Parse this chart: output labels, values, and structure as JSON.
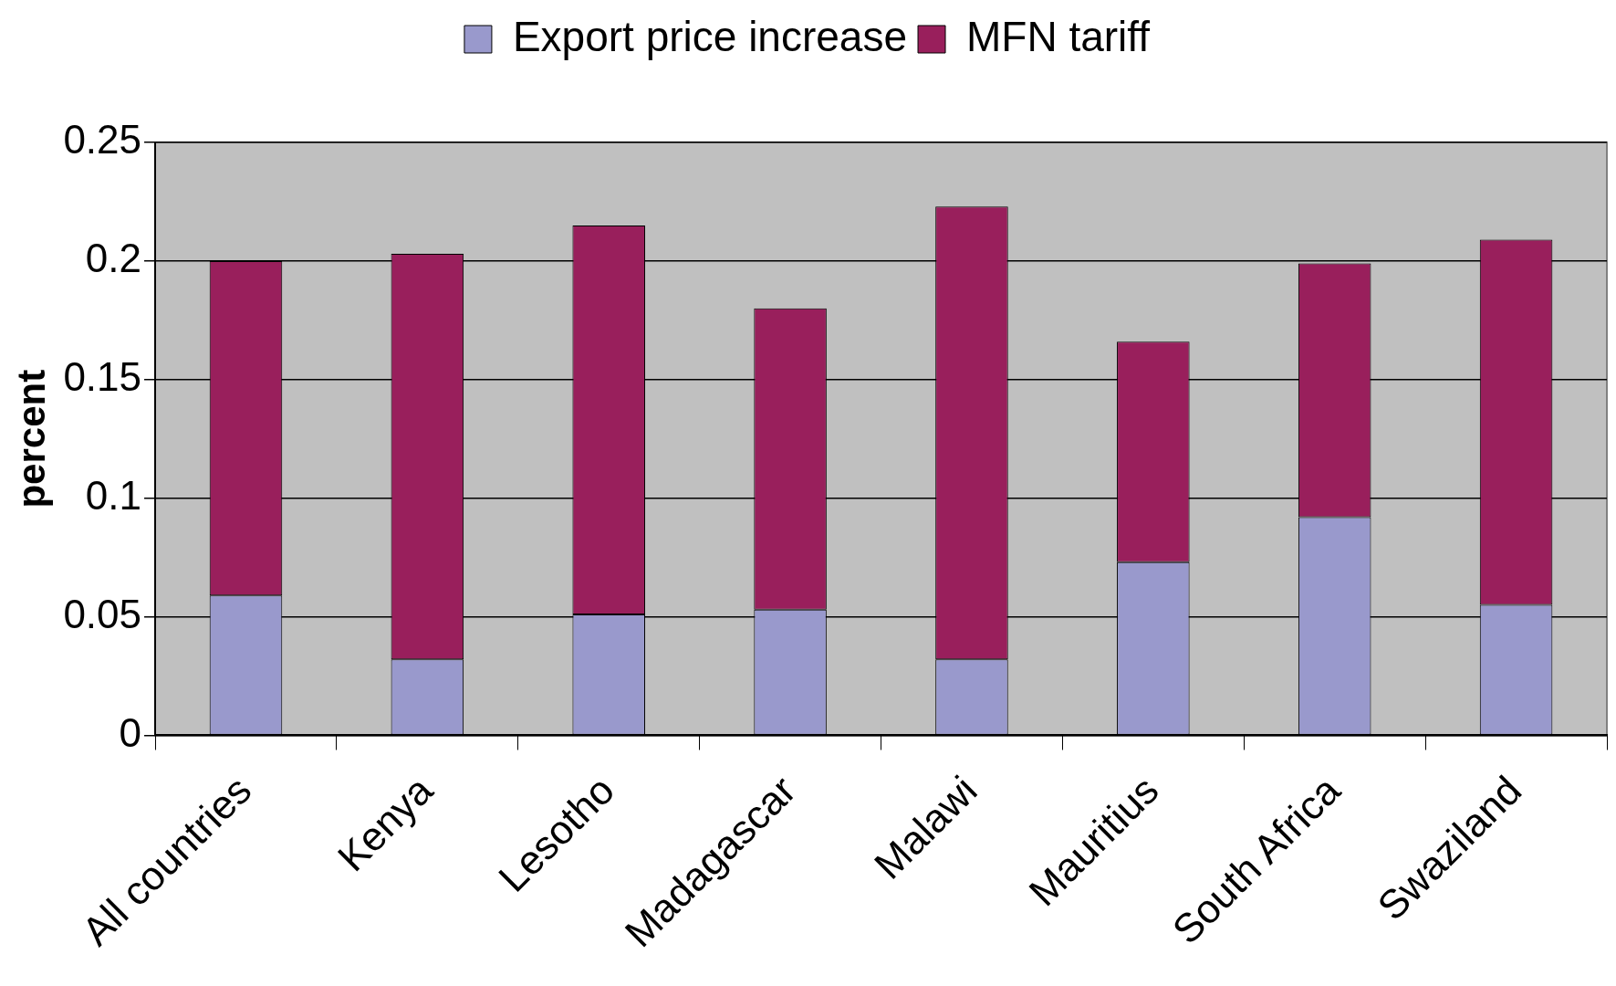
{
  "chart_data": {
    "type": "bar",
    "ylabel": "percent",
    "categories": [
      "All countries",
      "Kenya",
      "Lesotho",
      "Madagascar",
      "Malawi",
      "Mauritius",
      "South Africa",
      "Swaziland"
    ],
    "stacked": true,
    "series": [
      {
        "name": "Export price increase",
        "color": "#9999cc",
        "values": [
          0.059,
          0.032,
          0.051,
          0.053,
          0.032,
          0.073,
          0.092,
          0.055
        ]
      },
      {
        "name": "MFN tariff",
        "color": "#991f5c",
        "values": [
          0.141,
          0.171,
          0.164,
          0.127,
          0.191,
          0.093,
          0.107,
          0.154
        ]
      }
    ],
    "ylim": [
      0,
      0.25
    ],
    "yticks": [
      0,
      0.05,
      0.1,
      0.15,
      0.2,
      0.25
    ],
    "grid": "y",
    "legend": "top"
  }
}
